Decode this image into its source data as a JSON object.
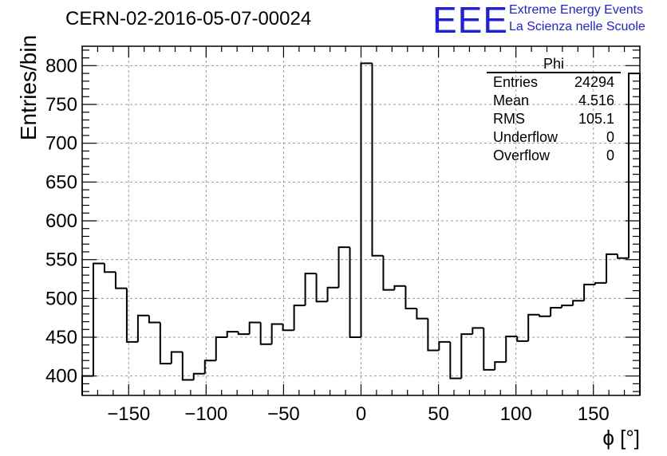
{
  "header": {
    "run_title": "CERN-02-2016-05-07-00024",
    "logo_text": "EEE",
    "logo_line1": "Extreme Energy Events",
    "logo_line2": "La Scienza nelle Scuole"
  },
  "stats": {
    "title": "Phi",
    "rows": [
      {
        "label": "Entries",
        "value": "24294"
      },
      {
        "label": "Mean",
        "value": "4.516"
      },
      {
        "label": "RMS",
        "value": "105.1"
      },
      {
        "label": "Underflow",
        "value": "0"
      },
      {
        "label": "Overflow",
        "value": "0"
      }
    ]
  },
  "chart_data": {
    "type": "bar",
    "histogram": true,
    "bin_edges_start": -180,
    "bin_width": 7.2,
    "values": [
      400,
      545,
      534,
      513,
      444,
      478,
      469,
      416,
      431,
      395,
      403,
      420,
      450,
      457,
      454,
      469,
      441,
      467,
      459,
      491,
      532,
      496,
      514,
      566,
      450,
      803,
      555,
      511,
      516,
      487,
      474,
      433,
      444,
      397,
      454,
      462,
      408,
      418,
      451,
      445,
      479,
      477,
      488,
      491,
      497,
      518,
      520,
      557,
      552,
      790
    ],
    "xlim": [
      -180,
      180
    ],
    "ylim": [
      375,
      825
    ],
    "xticks": [
      -150,
      -100,
      -50,
      0,
      50,
      100,
      150
    ],
    "yticks": [
      400,
      450,
      500,
      550,
      600,
      650,
      700,
      750,
      800
    ],
    "xlabel": "ϕ [°]",
    "ylabel": "Entries/bin",
    "grid": true,
    "line_color": "#000000",
    "grid_color": "#9a9a9a"
  }
}
